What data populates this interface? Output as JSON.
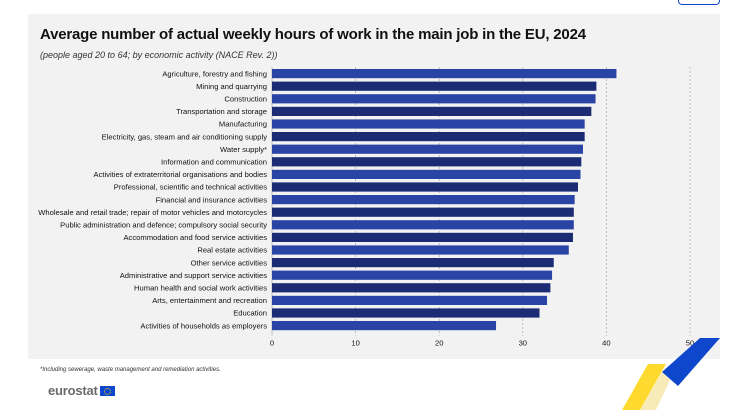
{
  "header": {
    "title": "Average number of actual weekly hours of work in the main job in the EU, 2024",
    "subtitle": "(people aged 20 to 64; by economic activity (NACE Rev. 2))"
  },
  "footnote": "*Including sewerage, waste management and remediation activities.",
  "logo": {
    "text": "eurostat"
  },
  "colors": {
    "bar_primary": "#2a44a6",
    "bar_alternate": "#1b2b74",
    "panel": "#f2f2f2",
    "accent_yellow": "#ffd617",
    "accent_blue": "#0e47cb"
  },
  "chart_data": {
    "type": "bar",
    "orientation": "horizontal",
    "title": "Average number of actual weekly hours of work in the main job in the EU, 2024",
    "xlabel": "",
    "ylabel": "",
    "xlim": [
      0,
      50
    ],
    "xticks": [
      0,
      10,
      20,
      30,
      40,
      50
    ],
    "grid": "vertical dashed",
    "categories": [
      "Agriculture, forestry and fishing",
      "Mining and quarrying",
      "Construction",
      "Transportation and storage",
      "Manufacturing",
      "Electricity, gas, steam and air conditioning supply",
      "Water supply*",
      "Information and communication",
      "Activities of extraterritorial organisations and bodies",
      "Professional, scientific and technical activities",
      "Financial and insurance activities",
      "Wholesale and retail trade; repair of motor vehicles and motorcycles",
      "Public administration and defence; compulsory social security",
      "Accommodation and food service activities",
      "Real estate activities",
      "Other service activities",
      "Administrative and support service activities",
      "Human health and social work activities",
      "Arts, entertainment and recreation",
      "Education",
      "Activities of households as employers"
    ],
    "values": [
      41.2,
      38.8,
      38.7,
      38.2,
      37.4,
      37.4,
      37.2,
      37.0,
      36.9,
      36.6,
      36.2,
      36.1,
      36.1,
      36.0,
      35.5,
      33.7,
      33.5,
      33.3,
      32.9,
      32.0,
      26.8
    ]
  }
}
